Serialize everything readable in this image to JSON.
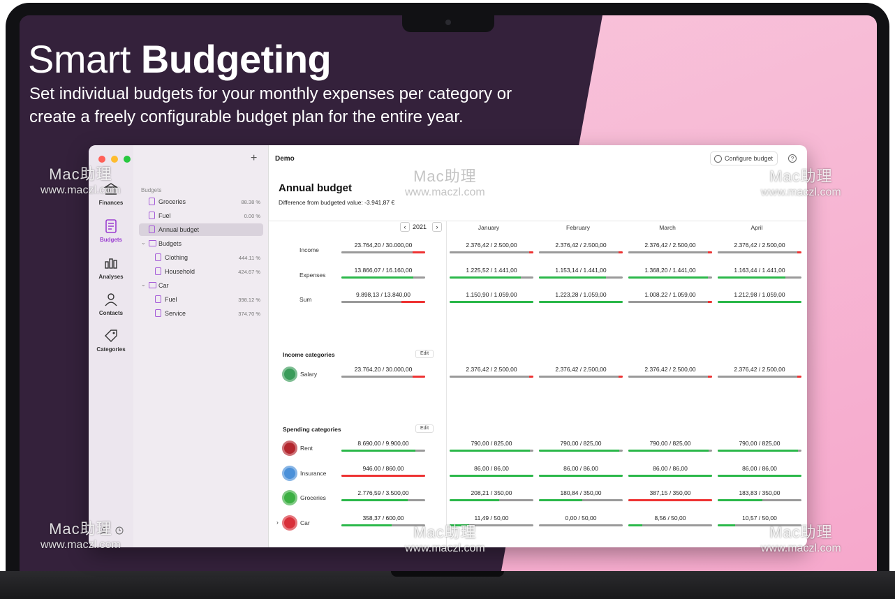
{
  "marketing": {
    "headline_light": "Smart",
    "headline_bold": "Budgeting",
    "subline": "Set individual budgets for your monthly expenses per category or create a freely configurable budget plan for the entire year."
  },
  "rail": {
    "items": [
      {
        "label": "Finances",
        "icon": "bank-icon"
      },
      {
        "label": "Budgets",
        "icon": "budget-icon",
        "active": true
      },
      {
        "label": "Analyses",
        "icon": "bar-chart-icon"
      },
      {
        "label": "Contacts",
        "icon": "person-icon"
      },
      {
        "label": "Categories",
        "icon": "tag-icon"
      }
    ]
  },
  "sidebar": {
    "add_label": "+",
    "section_title": "Budgets",
    "rows": [
      {
        "name": "Groceries",
        "pct": "88.38 %",
        "kind": "doc",
        "indent": 1
      },
      {
        "name": "Fuel",
        "pct": "0.00 %",
        "kind": "doc",
        "indent": 1
      },
      {
        "name": "Annual budget",
        "pct": "",
        "kind": "doc",
        "indent": 1,
        "selected": true
      },
      {
        "name": "Budgets",
        "pct": "",
        "kind": "folder",
        "indent": 0
      },
      {
        "name": "Clothing",
        "pct": "444.11 %",
        "kind": "doc",
        "indent": 2
      },
      {
        "name": "Household",
        "pct": "424.67 %",
        "kind": "doc",
        "indent": 2
      },
      {
        "name": "Car",
        "pct": "",
        "kind": "folder",
        "indent": 0
      },
      {
        "name": "Fuel",
        "pct": "398.12 %",
        "kind": "doc",
        "indent": 2
      },
      {
        "name": "Service",
        "pct": "374.70 %",
        "kind": "doc",
        "indent": 2
      }
    ]
  },
  "toolbar": {
    "doc_title": "Demo",
    "configure_label": "Configure budget",
    "help_label": "?"
  },
  "page": {
    "title": "Annual budget",
    "difference": "Difference from budgeted value: -3.941,87 €"
  },
  "table": {
    "year": "2021",
    "months": [
      "January",
      "February",
      "March",
      "April"
    ],
    "summary": [
      {
        "label": "Income",
        "total": {
          "actual": "23.764,20",
          "budget": "30.000,00",
          "fill": 0.79,
          "color": "#9a9a9a",
          "over": 0.15
        },
        "months": [
          {
            "actual": "2.376,42",
            "budget": "2.500,00",
            "fill": 0.95,
            "color": "#9a9a9a",
            "over": 0.05
          },
          {
            "actual": "2.376,42",
            "budget": "2.500,00",
            "fill": 0.95,
            "color": "#9a9a9a",
            "over": 0.05
          },
          {
            "actual": "2.376,42",
            "budget": "2.500,00",
            "fill": 0.95,
            "color": "#9a9a9a",
            "over": 0.05
          },
          {
            "actual": "2.376,42",
            "budget": "2.500,00",
            "fill": 0.95,
            "color": "#9a9a9a",
            "over": 0.05
          }
        ]
      },
      {
        "label": "Expenses",
        "total": {
          "actual": "13.866,07",
          "budget": "16.160,00",
          "fill": 0.86,
          "color": "#2bb84a",
          "over": 0
        },
        "months": [
          {
            "actual": "1.225,52",
            "budget": "1.441,00",
            "fill": 0.85,
            "color": "#2bb84a",
            "over": 0
          },
          {
            "actual": "1.153,14",
            "budget": "1.441,00",
            "fill": 0.8,
            "color": "#2bb84a",
            "over": 0
          },
          {
            "actual": "1.368,20",
            "budget": "1.441,00",
            "fill": 0.95,
            "color": "#2bb84a",
            "over": 0
          },
          {
            "actual": "1.163,44",
            "budget": "1.441,00",
            "fill": 0.81,
            "color": "#2bb84a",
            "over": 0
          }
        ]
      },
      {
        "label": "Sum",
        "total": {
          "actual": "9.898,13",
          "budget": "13.840,00",
          "fill": 0.72,
          "color": "#9a9a9a",
          "over": 0.28
        },
        "months": [
          {
            "actual": "1.150,90",
            "budget": "1.059,00",
            "fill": 1.0,
            "color": "#2bb84a",
            "over": 0
          },
          {
            "actual": "1.223,28",
            "budget": "1.059,00",
            "fill": 1.0,
            "color": "#2bb84a",
            "over": 0
          },
          {
            "actual": "1.008,22",
            "budget": "1.059,00",
            "fill": 0.95,
            "color": "#9a9a9a",
            "over": 0.05
          },
          {
            "actual": "1.212,98",
            "budget": "1.059,00",
            "fill": 1.0,
            "color": "#2bb84a",
            "over": 0
          }
        ]
      }
    ],
    "income_title": "Income categories",
    "income_edit": "Edit",
    "income": [
      {
        "label": "Salary",
        "icon": "salary-icon",
        "icon_color": "#3a9c5a",
        "total": {
          "actual": "23.764,20",
          "budget": "30.000,00",
          "fill": 0.79,
          "color": "#9a9a9a",
          "over": 0.15
        },
        "months": [
          {
            "actual": "2.376,42",
            "budget": "2.500,00",
            "fill": 0.95,
            "color": "#9a9a9a",
            "over": 0.05
          },
          {
            "actual": "2.376,42",
            "budget": "2.500,00",
            "fill": 0.95,
            "color": "#9a9a9a",
            "over": 0.05
          },
          {
            "actual": "2.376,42",
            "budget": "2.500,00",
            "fill": 0.95,
            "color": "#9a9a9a",
            "over": 0.05
          },
          {
            "actual": "2.376,42",
            "budget": "2.500,00",
            "fill": 0.95,
            "color": "#9a9a9a",
            "over": 0.05
          }
        ]
      }
    ],
    "spending_title": "Spending categories",
    "spending_edit": "Edit",
    "spending": [
      {
        "label": "Rent",
        "icon": "house-icon",
        "icon_color": "#b3262e",
        "total": {
          "actual": "8.690,00",
          "budget": "9.900,00",
          "fill": 0.88,
          "color": "#2bb84a",
          "over": 0
        },
        "months": [
          {
            "actual": "790,00",
            "budget": "825,00",
            "fill": 0.96,
            "color": "#2bb84a",
            "over": 0
          },
          {
            "actual": "790,00",
            "budget": "825,00",
            "fill": 0.96,
            "color": "#2bb84a",
            "over": 0
          },
          {
            "actual": "790,00",
            "budget": "825,00",
            "fill": 0.96,
            "color": "#2bb84a",
            "over": 0
          },
          {
            "actual": "790,00",
            "budget": "825,00",
            "fill": 0.96,
            "color": "#2bb84a",
            "over": 0
          }
        ]
      },
      {
        "label": "Insurance",
        "icon": "shield-icon",
        "icon_color": "#4a90d9",
        "total": {
          "actual": "946,00",
          "budget": "860,00",
          "fill": 1.0,
          "color": "#e33",
          "over": 0
        },
        "months": [
          {
            "actual": "86,00",
            "budget": "86,00",
            "fill": 1.0,
            "color": "#2bb84a",
            "over": 0
          },
          {
            "actual": "86,00",
            "budget": "86,00",
            "fill": 1.0,
            "color": "#2bb84a",
            "over": 0
          },
          {
            "actual": "86,00",
            "budget": "86,00",
            "fill": 1.0,
            "color": "#2bb84a",
            "over": 0
          },
          {
            "actual": "86,00",
            "budget": "86,00",
            "fill": 1.0,
            "color": "#2bb84a",
            "over": 0
          }
        ]
      },
      {
        "label": "Groceries",
        "icon": "apple-icon",
        "icon_color": "#3cb043",
        "total": {
          "actual": "2.776,59",
          "budget": "3.500,00",
          "fill": 0.79,
          "color": "#2bb84a",
          "over": 0
        },
        "months": [
          {
            "actual": "208,21",
            "budget": "350,00",
            "fill": 0.59,
            "color": "#2bb84a",
            "over": 0
          },
          {
            "actual": "180,84",
            "budget": "350,00",
            "fill": 0.52,
            "color": "#2bb84a",
            "over": 0
          },
          {
            "actual": "387,15",
            "budget": "350,00",
            "fill": 1.0,
            "color": "#e33",
            "over": 0
          },
          {
            "actual": "183,83",
            "budget": "350,00",
            "fill": 0.53,
            "color": "#2bb84a",
            "over": 0
          }
        ]
      },
      {
        "label": "Car",
        "icon": "car-icon",
        "icon_color": "#d9303a",
        "expandable": true,
        "total": {
          "actual": "358,37",
          "budget": "600,00",
          "fill": 0.6,
          "color": "#2bb84a",
          "over": 0
        },
        "months": [
          {
            "actual": "11,49",
            "budget": "50,00",
            "fill": 0.23,
            "color": "#2bb84a",
            "over": 0
          },
          {
            "actual": "0,00",
            "budget": "50,00",
            "fill": 0.0,
            "color": "#2bb84a",
            "over": 0
          },
          {
            "actual": "8,56",
            "budget": "50,00",
            "fill": 0.17,
            "color": "#2bb84a",
            "over": 0
          },
          {
            "actual": "10,57",
            "budget": "50,00",
            "fill": 0.21,
            "color": "#2bb84a",
            "over": 0
          }
        ]
      }
    ]
  },
  "watermark": {
    "line1": "Mac助理",
    "line2": "www.maczl.com"
  }
}
